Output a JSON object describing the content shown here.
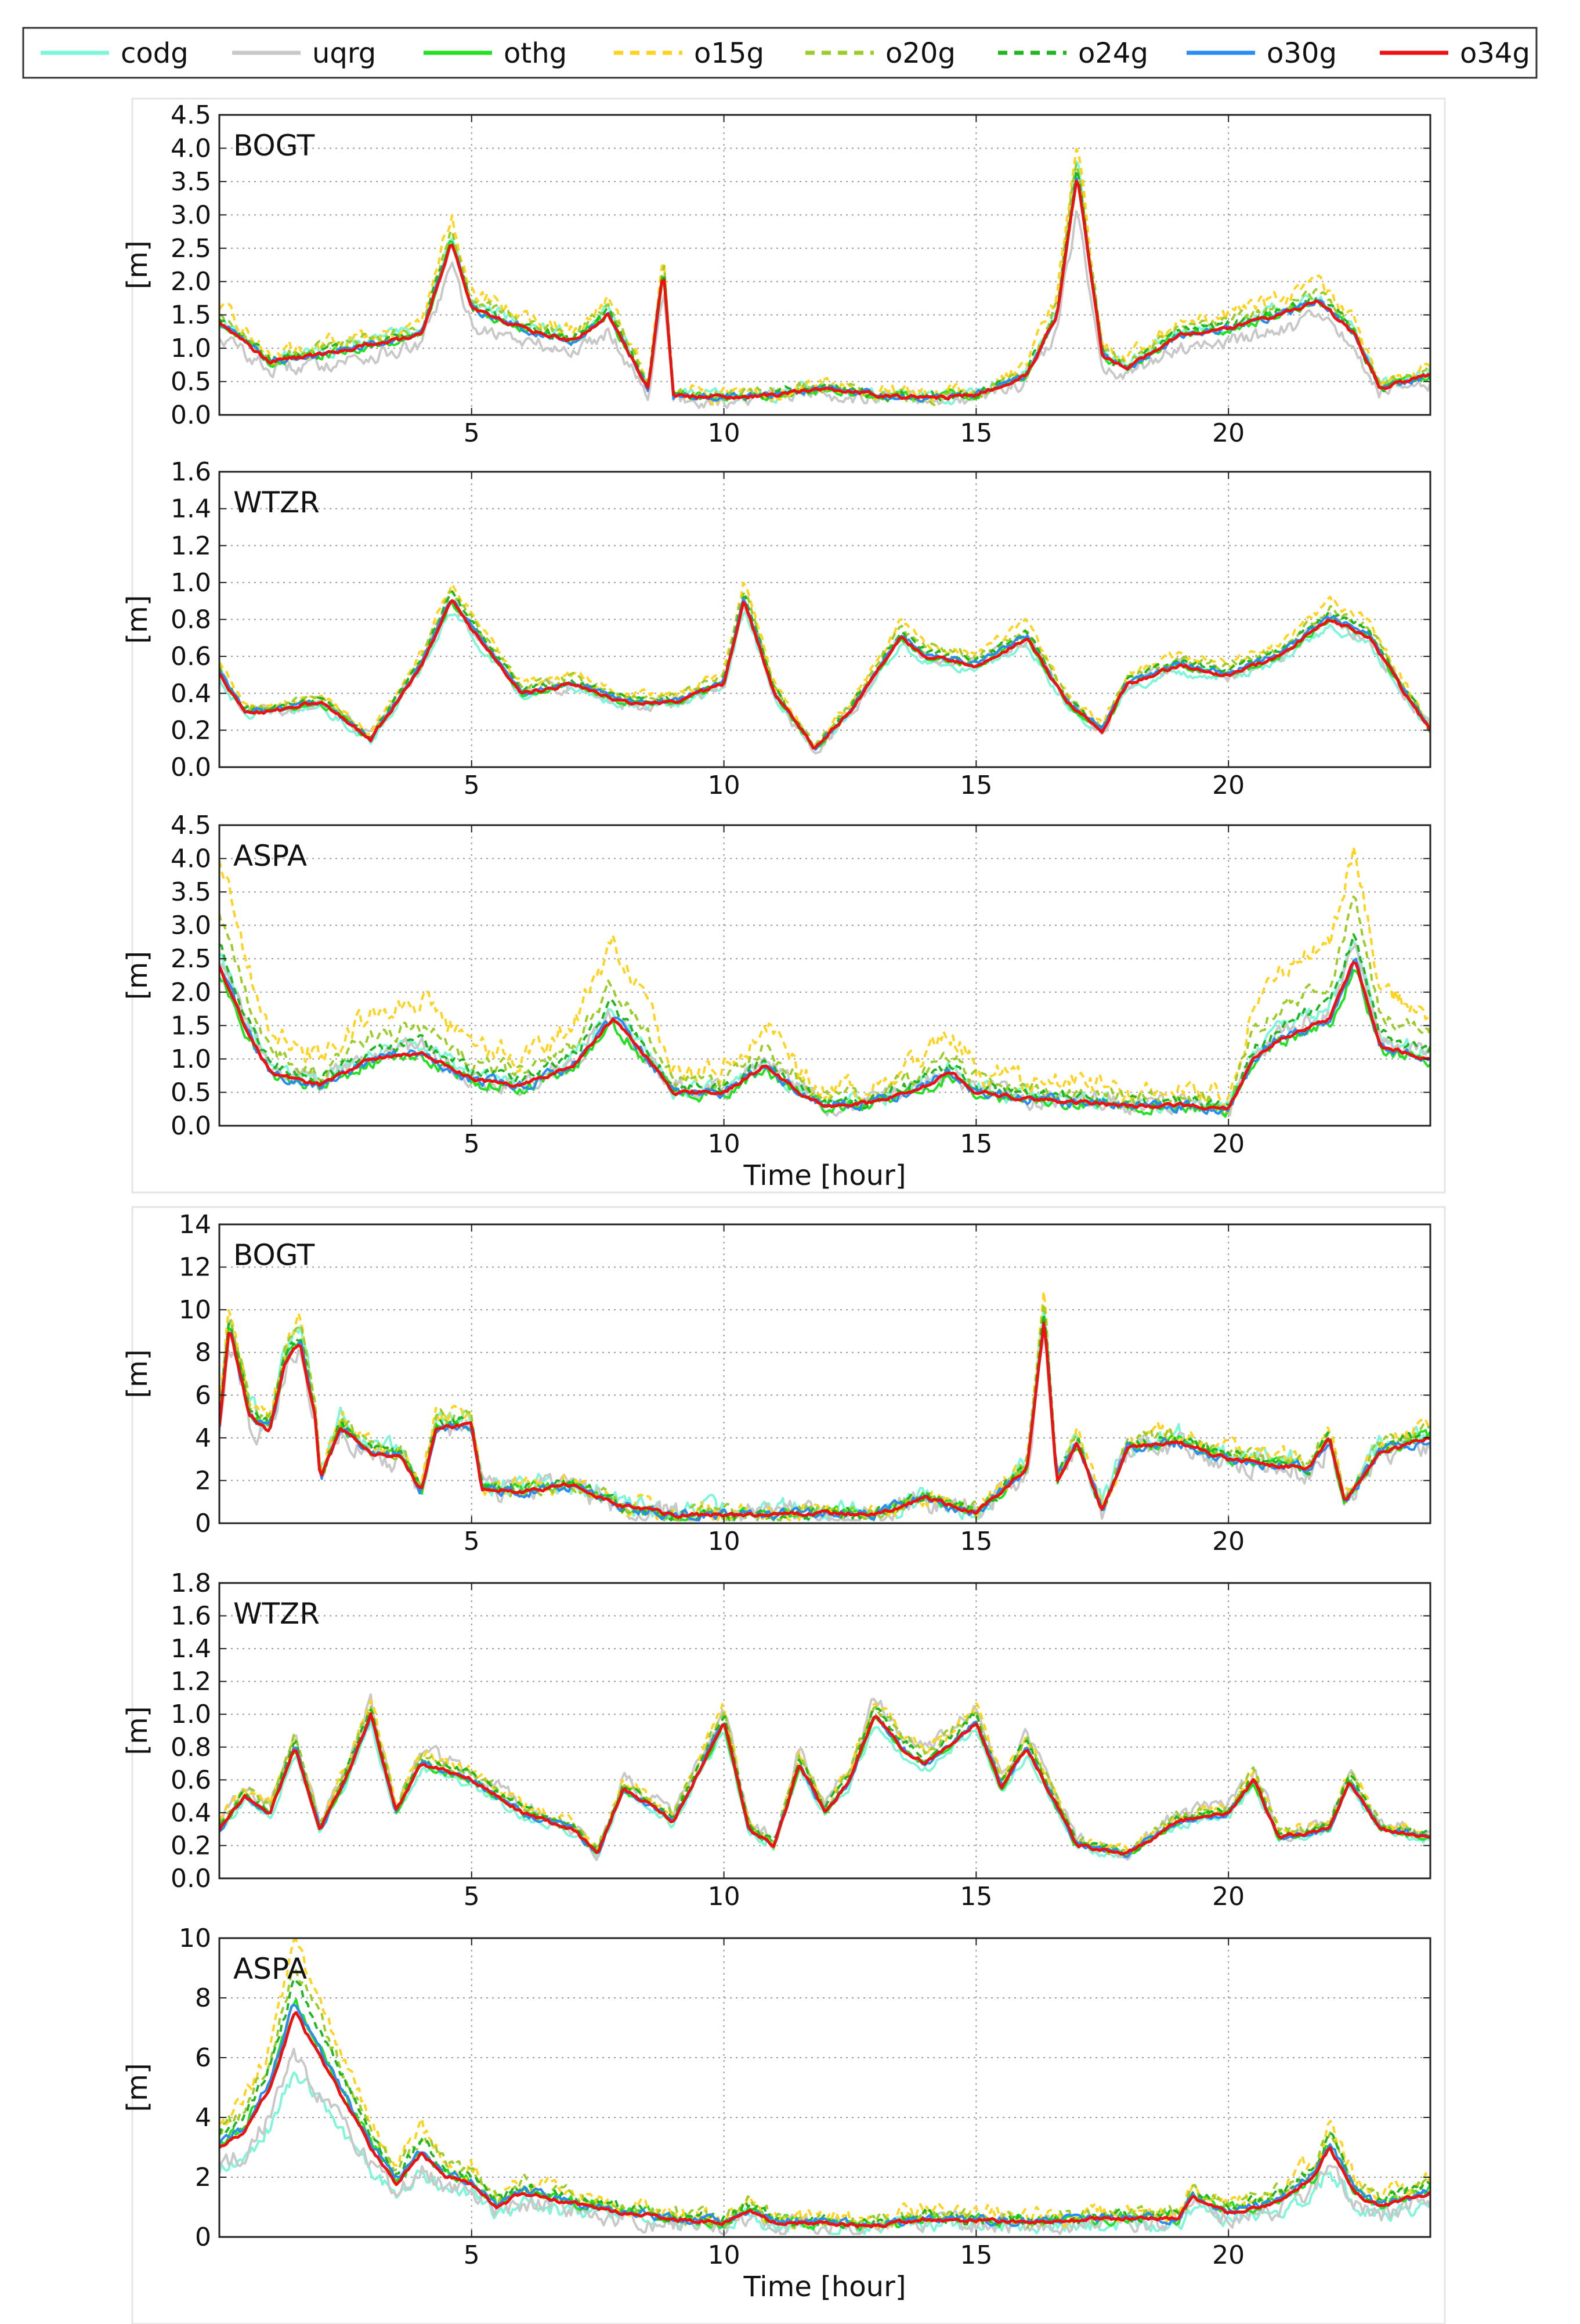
{
  "legend": [
    {
      "name": "codg",
      "color": "#7ff5d9",
      "dash": "solid"
    },
    {
      "name": "uqrg",
      "color": "#c8c8c8",
      "dash": "solid"
    },
    {
      "name": "othg",
      "color": "#22e022",
      "dash": "solid"
    },
    {
      "name": "o15g",
      "color": "#ffd21e",
      "dash": "dashed"
    },
    {
      "name": "o20g",
      "color": "#9ccc2a",
      "dash": "dashed"
    },
    {
      "name": "o24g",
      "color": "#21b521",
      "dash": "dashed"
    },
    {
      "name": "o30g",
      "color": "#2a8cf2",
      "dash": "solid"
    },
    {
      "name": "o34g",
      "color": "#ee1111",
      "dash": "solid"
    }
  ],
  "chart_data": [
    {
      "type": "line",
      "title": "BOGT",
      "ylabel": "[m]",
      "xlabel": "",
      "xlim": [
        0,
        24
      ],
      "ylim": [
        0,
        4.5
      ],
      "yticks": [
        "0.0",
        "0.5",
        "1.0",
        "1.5",
        "2.0",
        "2.5",
        "3.0",
        "3.5",
        "4.0",
        "4.5"
      ],
      "xticks": [
        "5",
        "10",
        "15",
        "20"
      ],
      "x": [
        0,
        1,
        2,
        3,
        4,
        4.6,
        5,
        6,
        7,
        7.7,
        8.5,
        8.8,
        9,
        10,
        11,
        12,
        13,
        14,
        15,
        16,
        16.6,
        17,
        17.5,
        18,
        19,
        20,
        21,
        21.8,
        22.5,
        23,
        24
      ],
      "y": [
        1.4,
        0.8,
        0.9,
        1.05,
        1.2,
        2.6,
        1.6,
        1.3,
        1.1,
        1.5,
        0.4,
        2.2,
        0.3,
        0.25,
        0.3,
        0.4,
        0.3,
        0.25,
        0.3,
        0.6,
        1.5,
        3.6,
        0.9,
        0.7,
        1.2,
        1.3,
        1.5,
        1.7,
        1.2,
        0.4,
        0.6
      ],
      "series_scale": {
        "codg": [
          1.05,
          0.12
        ],
        "uqrg": [
          0.85,
          0.15
        ],
        "othg": [
          1.0,
          0.06
        ],
        "o15g": [
          1.15,
          0.15
        ],
        "o20g": [
          1.08,
          0.1
        ],
        "o24g": [
          1.03,
          0.07
        ],
        "o30g": [
          1.0,
          0.04
        ],
        "o34g": [
          1.0,
          0.0
        ]
      }
    },
    {
      "type": "line",
      "title": "WTZR",
      "ylabel": "[m]",
      "xlabel": "",
      "xlim": [
        0,
        24
      ],
      "ylim": [
        0,
        1.6
      ],
      "yticks": [
        "0.0",
        "0.2",
        "0.4",
        "0.6",
        "0.8",
        "1.0",
        "1.2",
        "1.4",
        "1.6"
      ],
      "xticks": [
        "5",
        "10",
        "15",
        "20"
      ],
      "x": [
        0,
        0.5,
        1,
        2,
        3,
        4,
        4.6,
        5,
        6,
        7,
        8,
        9,
        10,
        10.4,
        11,
        11.8,
        12.5,
        13,
        13.5,
        14,
        15,
        16,
        16.8,
        17.5,
        18,
        19,
        20,
        21,
        22,
        22.8,
        23.5,
        24
      ],
      "y": [
        0.5,
        0.3,
        0.3,
        0.35,
        0.15,
        0.55,
        0.9,
        0.75,
        0.4,
        0.45,
        0.35,
        0.35,
        0.45,
        0.9,
        0.4,
        0.1,
        0.3,
        0.5,
        0.7,
        0.6,
        0.55,
        0.7,
        0.35,
        0.2,
        0.45,
        0.55,
        0.5,
        0.6,
        0.8,
        0.7,
        0.4,
        0.2
      ],
      "series_scale": {
        "codg": [
          0.95,
          0.06
        ],
        "uqrg": [
          1.0,
          0.12
        ],
        "othg": [
          1.0,
          0.03
        ],
        "o15g": [
          1.12,
          0.06
        ],
        "o20g": [
          1.08,
          0.05
        ],
        "o24g": [
          1.05,
          0.03
        ],
        "o30g": [
          1.02,
          0.02
        ],
        "o34g": [
          1.0,
          0.0
        ]
      }
    },
    {
      "type": "line",
      "title": "ASPA",
      "ylabel": "[m]",
      "xlabel": "Time [hour]",
      "xlim": [
        0,
        24
      ],
      "ylim": [
        0,
        4.5
      ],
      "yticks": [
        "0.0",
        "0.5",
        "1.0",
        "1.5",
        "2.0",
        "2.5",
        "3.0",
        "3.5",
        "4.0",
        "4.5"
      ],
      "xticks": [
        "5",
        "10",
        "15",
        "20"
      ],
      "x": [
        0,
        0.5,
        1,
        2,
        3,
        4,
        5,
        6,
        7,
        7.8,
        8.5,
        9,
        10,
        10.8,
        11.5,
        12,
        13,
        14,
        14.5,
        15,
        16,
        17,
        18,
        19,
        20,
        20.5,
        21,
        22,
        22.5,
        23,
        24
      ],
      "y": [
        2.4,
        1.5,
        0.8,
        0.6,
        1.0,
        1.1,
        0.7,
        0.6,
        0.9,
        1.6,
        1.0,
        0.5,
        0.5,
        0.9,
        0.5,
        0.3,
        0.35,
        0.6,
        0.8,
        0.5,
        0.4,
        0.35,
        0.3,
        0.3,
        0.25,
        1.0,
        1.3,
        1.6,
        2.5,
        1.2,
        1.0
      ],
      "series_scale": {
        "codg": [
          1.1,
          0.15
        ],
        "uqrg": [
          1.05,
          0.2
        ],
        "othg": [
          0.95,
          0.1
        ],
        "o15g": [
          1.7,
          0.25
        ],
        "o20g": [
          1.35,
          0.15
        ],
        "o24g": [
          1.15,
          0.1
        ],
        "o30g": [
          1.0,
          0.08
        ],
        "o34g": [
          1.0,
          0.0
        ]
      }
    },
    {
      "type": "line",
      "title": "BOGT",
      "ylabel": "[m]",
      "xlabel": "",
      "xlim": [
        0,
        24
      ],
      "ylim": [
        0,
        14
      ],
      "yticks": [
        "0",
        "2",
        "4",
        "6",
        "8",
        "10",
        "12",
        "14"
      ],
      "xticks": [
        "5",
        "10",
        "15",
        "20"
      ],
      "x": [
        0,
        0.2,
        0.6,
        1,
        1.3,
        1.6,
        1.9,
        2,
        2.4,
        3,
        3.6,
        4,
        4.3,
        5,
        5.2,
        6,
        7,
        8,
        9,
        10,
        11,
        12,
        13,
        14,
        15,
        16,
        16.35,
        16.6,
        17,
        17.5,
        18,
        19,
        20,
        21,
        21.6,
        22,
        22.3,
        23,
        24
      ],
      "y": [
        4.5,
        9.2,
        5.0,
        4.3,
        7.5,
        8.5,
        5.0,
        2.0,
        4.5,
        3.2,
        3.1,
        1.5,
        4.5,
        4.6,
        1.6,
        1.5,
        1.8,
        0.8,
        0.4,
        0.35,
        0.4,
        0.5,
        0.4,
        1.2,
        0.5,
        2.5,
        9.6,
        2.0,
        3.8,
        0.6,
        3.5,
        3.8,
        3.0,
        2.7,
        2.6,
        4.0,
        1.0,
        3.3,
        4.0
      ],
      "series_scale": {
        "codg": [
          1.08,
          0.25
        ],
        "uqrg": [
          0.95,
          0.25
        ],
        "othg": [
          1.02,
          0.1
        ],
        "o15g": [
          1.12,
          0.2
        ],
        "o20g": [
          1.08,
          0.15
        ],
        "o24g": [
          1.05,
          0.1
        ],
        "o30g": [
          1.0,
          0.08
        ],
        "o34g": [
          1.0,
          0.0
        ]
      }
    },
    {
      "type": "line",
      "title": "WTZR",
      "ylabel": "[m]",
      "xlabel": "",
      "xlim": [
        0,
        24
      ],
      "ylim": [
        0,
        1.8
      ],
      "yticks": [
        "0.0",
        "0.2",
        "0.4",
        "0.6",
        "0.8",
        "1.0",
        "1.2",
        "1.4",
        "1.6",
        "1.8"
      ],
      "xticks": [
        "5",
        "10",
        "15",
        "20"
      ],
      "x": [
        0,
        0.5,
        1,
        1.5,
        2,
        2.5,
        3,
        3.5,
        4,
        5,
        6,
        7,
        7.5,
        8,
        9,
        10,
        10.5,
        11,
        11.5,
        12,
        12.5,
        13,
        13.5,
        14,
        15,
        15.5,
        16,
        17,
        18,
        19,
        20,
        20.5,
        21,
        22,
        22.4,
        23,
        24
      ],
      "y": [
        0.3,
        0.5,
        0.4,
        0.8,
        0.3,
        0.6,
        1.0,
        0.4,
        0.7,
        0.6,
        0.4,
        0.3,
        0.15,
        0.55,
        0.35,
        0.95,
        0.3,
        0.2,
        0.7,
        0.4,
        0.6,
        1.0,
        0.8,
        0.7,
        0.95,
        0.55,
        0.8,
        0.2,
        0.15,
        0.35,
        0.4,
        0.6,
        0.25,
        0.3,
        0.6,
        0.3,
        0.25
      ],
      "series_scale": {
        "codg": [
          0.95,
          0.06
        ],
        "uqrg": [
          1.1,
          0.15
        ],
        "othg": [
          1.0,
          0.04
        ],
        "o15g": [
          1.1,
          0.1
        ],
        "o20g": [
          1.08,
          0.08
        ],
        "o24g": [
          1.05,
          0.05
        ],
        "o30g": [
          1.0,
          0.03
        ],
        "o34g": [
          1.0,
          0.0
        ]
      }
    },
    {
      "type": "line",
      "title": "ASPA",
      "ylabel": "[m]",
      "xlabel": "Time [hour]",
      "xlim": [
        0,
        24
      ],
      "ylim": [
        0,
        10
      ],
      "yticks": [
        "0",
        "2",
        "4",
        "6",
        "8",
        "10"
      ],
      "xticks": [
        "5",
        "10",
        "15",
        "20"
      ],
      "x": [
        0,
        0.5,
        1,
        1.5,
        2,
        2.5,
        3,
        3.5,
        4,
        4.5,
        5,
        5.5,
        6,
        7,
        8,
        9,
        10,
        10.5,
        11,
        12,
        13,
        14,
        15,
        16,
        17,
        18,
        19,
        19.3,
        20,
        21,
        21.7,
        22,
        22.5,
        23,
        24
      ],
      "y": [
        3.0,
        3.5,
        5.0,
        7.5,
        6.0,
        4.5,
        3.0,
        1.8,
        2.8,
        2.0,
        1.8,
        1.0,
        1.5,
        1.1,
        0.8,
        0.6,
        0.5,
        0.9,
        0.5,
        0.45,
        0.4,
        0.6,
        0.55,
        0.5,
        0.55,
        0.65,
        0.6,
        1.3,
        0.8,
        1.2,
        2.0,
        3.0,
        1.5,
        1.0,
        1.5
      ],
      "series_scale": {
        "codg": [
          0.75,
          0.15
        ],
        "uqrg": [
          0.8,
          0.2
        ],
        "othg": [
          1.05,
          0.1
        ],
        "o15g": [
          1.3,
          0.2
        ],
        "o20g": [
          1.2,
          0.15
        ],
        "o24g": [
          1.15,
          0.1
        ],
        "o30g": [
          1.05,
          0.06
        ],
        "o34g": [
          1.0,
          0.0
        ]
      }
    }
  ]
}
